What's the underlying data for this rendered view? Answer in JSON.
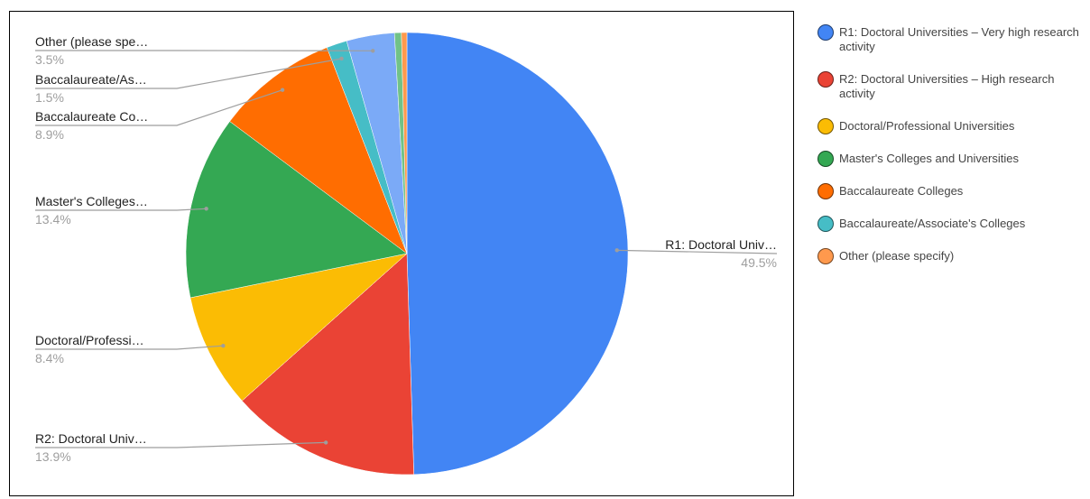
{
  "chart_data": {
    "type": "pie",
    "categories": [
      "R1: Doctoral Universities – Very high research activity",
      "R2: Doctoral Universities – High research activity",
      "Doctoral/Professional Universities",
      "Master's Colleges and Universities",
      "Baccalaureate Colleges",
      "Baccalaureate/Associate's Colleges",
      "Other (please specify)",
      "",
      ""
    ],
    "values": [
      49.5,
      13.9,
      8.4,
      13.4,
      8.9,
      1.5,
      3.5,
      0.5,
      0.4
    ],
    "colors": [
      "#4285f4",
      "#ea4335",
      "#fbbc04",
      "#34a853",
      "#ff6d01",
      "#46bdc6",
      "#7baaf7",
      "#71c287",
      "#ff994d"
    ],
    "legend_colors": [
      "#4285f4",
      "#ea4335",
      "#fbbc04",
      "#34a853",
      "#ff6d01",
      "#46bdc6",
      "#ff994d"
    ],
    "legend_position": "right",
    "slice_labels": [
      {
        "name": "R1: Doctoral Univ…",
        "pct": "49.5%"
      },
      {
        "name": "R2: Doctoral Univ…",
        "pct": "13.9%"
      },
      {
        "name": "Doctoral/Professi…",
        "pct": "8.4%"
      },
      {
        "name": "Master's Colleges…",
        "pct": "13.4%"
      },
      {
        "name": "Baccalaureate Co…",
        "pct": "8.9%"
      },
      {
        "name": "Baccalaureate/As…",
        "pct": "1.5%"
      },
      {
        "name": "Other (please spe…",
        "pct": "3.5%"
      }
    ]
  }
}
